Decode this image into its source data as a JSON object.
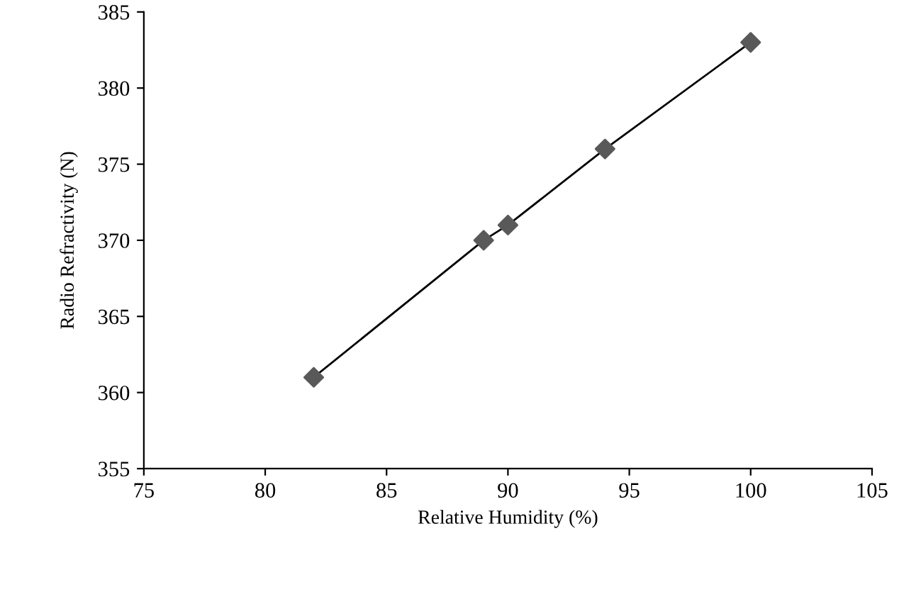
{
  "chart_data": {
    "type": "scatter",
    "xlabel": "Relative Humidity (%)",
    "ylabel": "Radio Refractivity (N)",
    "series": [
      {
        "type": "line",
        "color": "#000000",
        "marker": "none",
        "x": [
          82,
          89,
          90,
          94,
          100
        ],
        "values": [
          361,
          370,
          371,
          376,
          383
        ]
      },
      {
        "color": "#595959",
        "marker": "diamond",
        "x": [
          82,
          89,
          90,
          94,
          100
        ],
        "values": [
          361,
          370,
          371,
          376,
          383
        ]
      }
    ],
    "xlim": [
      75,
      105
    ],
    "xticks": [
      75,
      80,
      85,
      90,
      95,
      100,
      105
    ],
    "ylim": [
      355,
      385
    ],
    "yticks": [
      355,
      360,
      365,
      370,
      375,
      380,
      385
    ],
    "grid": false,
    "legend": false
  }
}
